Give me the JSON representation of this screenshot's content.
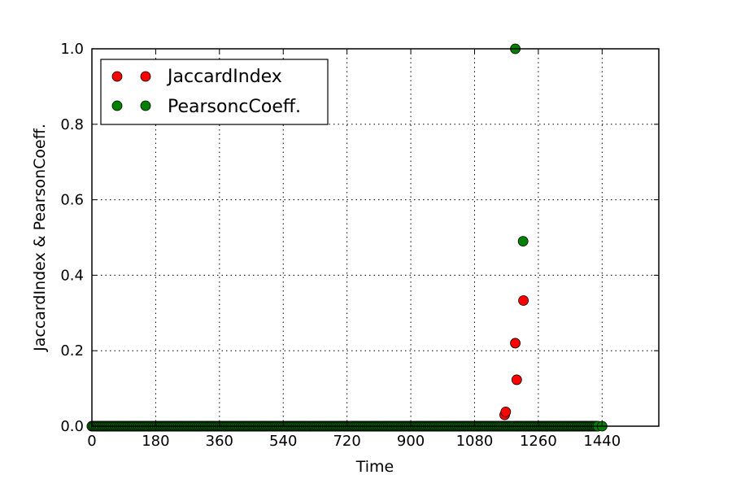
{
  "chart_data": {
    "type": "scatter",
    "title": "",
    "xlabel": "Time",
    "ylabel": "JaccardIndex  &  PearsonCoeff.",
    "xlim": [
      0,
      1600
    ],
    "ylim": [
      0,
      1.0
    ],
    "xticks": [
      0,
      180,
      360,
      540,
      720,
      900,
      1080,
      1260,
      1440
    ],
    "xtick_labels": [
      "0",
      "180",
      "360",
      "540",
      "720",
      "900",
      "1080",
      "1260",
      "1440"
    ],
    "yticks": [
      0.0,
      0.2,
      0.4,
      0.6,
      0.8,
      1.0
    ],
    "ytick_labels": [
      "0.0",
      "0.2",
      "0.4",
      "0.6",
      "0.8",
      "1.0"
    ],
    "grid": true,
    "legend_position": "top-left",
    "series": [
      {
        "name": "JaccardIndex",
        "color": "#ff0000",
        "baseline": {
          "x_start": 0,
          "x_end": 1430,
          "step": 4,
          "y": 0
        },
        "points": [
          {
            "x": 1165,
            "y": 0.03
          },
          {
            "x": 1168,
            "y": 0.038
          },
          {
            "x": 1195,
            "y": 0.22
          },
          {
            "x": 1199,
            "y": 0.123
          },
          {
            "x": 1218,
            "y": 0.333
          }
        ]
      },
      {
        "name": "PearsoncCoeff.",
        "color": "#008000",
        "baseline": {
          "x_start": 0,
          "x_end": 1430,
          "step": 4,
          "y": 0
        },
        "points": [
          {
            "x": 1195,
            "y": 1.0
          },
          {
            "x": 1217,
            "y": 0.49
          },
          {
            "x": 1440,
            "y": 0.0
          }
        ]
      }
    ]
  }
}
